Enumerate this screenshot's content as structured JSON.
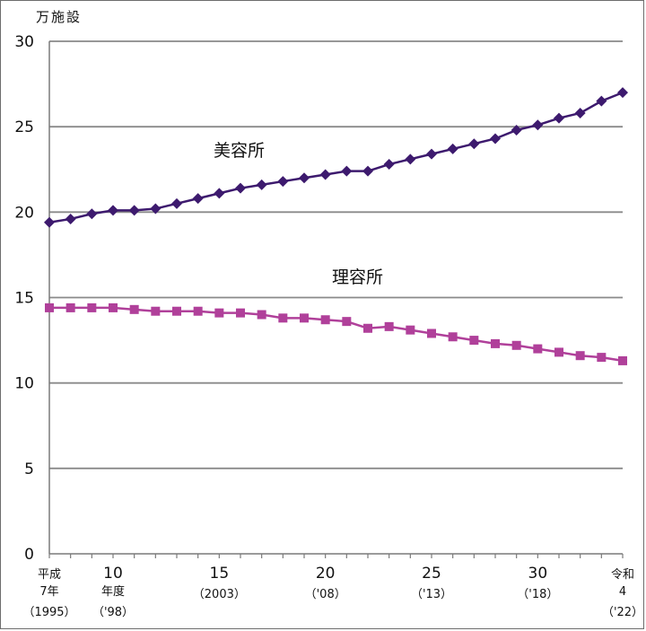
{
  "chart_data": {
    "type": "line",
    "y_unit_label": "万施設",
    "ylim": [
      0,
      30
    ],
    "y_ticks": [
      0,
      5,
      10,
      15,
      20,
      25,
      30
    ],
    "grid": true,
    "x": [
      1995,
      1996,
      1997,
      1998,
      1999,
      2000,
      2001,
      2002,
      2003,
      2004,
      2005,
      2006,
      2007,
      2008,
      2009,
      2010,
      2011,
      2012,
      2013,
      2014,
      2015,
      2016,
      2017,
      2018,
      2019,
      2020,
      2021,
      2022
    ],
    "x_tick_labels": [
      {
        "x": 1995,
        "lines": [
          "平成",
          "7年",
          "（1995）"
        ]
      },
      {
        "x": 1998,
        "lines": [
          "10",
          "年度",
          "（'98）"
        ]
      },
      {
        "x": 2003,
        "lines": [
          "15",
          "（2003）"
        ]
      },
      {
        "x": 2008,
        "lines": [
          "20",
          "（'08）"
        ]
      },
      {
        "x": 2013,
        "lines": [
          "25",
          "（'13）"
        ]
      },
      {
        "x": 2018,
        "lines": [
          "30",
          "（'18）"
        ]
      },
      {
        "x": 2022,
        "lines": [
          "令和",
          "4",
          "（'22）"
        ]
      }
    ],
    "series": [
      {
        "name": "美容所",
        "color": "#3d1a6e",
        "marker": "diamond",
        "values": [
          19.4,
          19.6,
          19.9,
          20.1,
          20.1,
          20.2,
          20.5,
          20.8,
          21.1,
          21.4,
          21.6,
          21.8,
          22.0,
          22.2,
          22.4,
          22.4,
          22.8,
          23.1,
          23.4,
          23.7,
          24.0,
          24.3,
          24.8,
          25.1,
          25.5,
          25.8,
          26.5,
          27.0
        ]
      },
      {
        "name": "理容所",
        "color": "#b0409a",
        "marker": "square",
        "values": [
          14.4,
          14.4,
          14.4,
          14.4,
          14.3,
          14.2,
          14.2,
          14.2,
          14.1,
          14.1,
          14.0,
          13.8,
          13.8,
          13.7,
          13.6,
          13.2,
          13.3,
          13.1,
          12.9,
          12.7,
          12.5,
          12.3,
          12.2,
          12.0,
          11.8,
          11.6,
          11.5,
          11.3
        ]
      }
    ]
  }
}
